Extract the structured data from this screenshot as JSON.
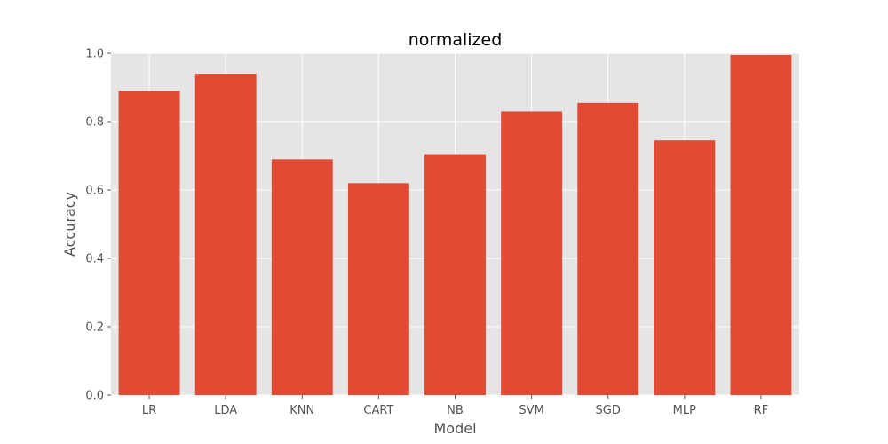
{
  "chart_data": {
    "type": "bar",
    "title": "normalized",
    "xlabel": "Model",
    "ylabel": "Accuracy",
    "categories": [
      "LR",
      "LDA",
      "KNN",
      "CART",
      "NB",
      "SVM",
      "SGD",
      "MLP",
      "RF"
    ],
    "values": [
      0.89,
      0.94,
      0.69,
      0.62,
      0.705,
      0.83,
      0.855,
      0.745,
      0.995
    ],
    "ylim": [
      0,
      1.0
    ],
    "yticks": [
      "0.0",
      "0.2",
      "0.4",
      "0.6",
      "0.8",
      "1.0"
    ],
    "grid": true,
    "legend": "none",
    "colors": {
      "bar": "#e24a33",
      "plot_background": "#e5e5e5",
      "grid": "#ffffff",
      "tick_text": "#555555"
    }
  }
}
